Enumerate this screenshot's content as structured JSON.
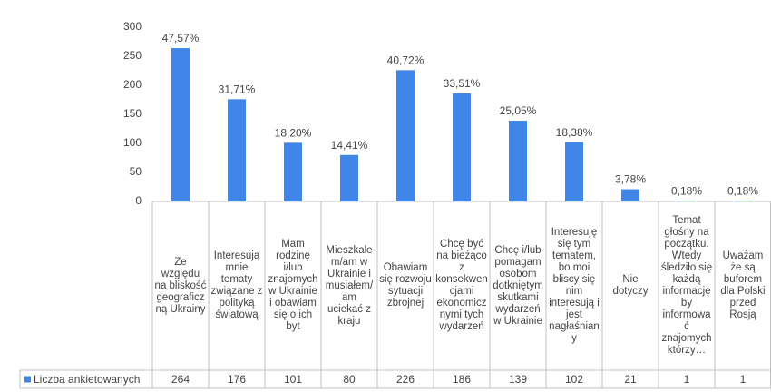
{
  "chart_data": {
    "type": "bar",
    "categories": [
      "Ze względu na bliskość geograficzną Ukrainy",
      "Interesują mnie tematy związane z polityką światową",
      "Mam rodzinę i/lub znajomych w Ukrainie i obawiam się o ich byt",
      "Mieszkałem/am w Ukrainie i musiałem/am uciekać z kraju",
      "Obawiam się rozwoju sytuacji zbrojnej",
      "Chcę być na bieżąco z konsekwencjami ekonomicznymi tych wydarzeń",
      "Chcę i/lub pomagam osobom dotkniętym skutkami wydarzeń w Ukrainie",
      "Interesuję się tym tematem, bo moi bliscy się nim interesują i jest nagłaśniany",
      "Nie dotyczy",
      "Temat głośny na początku. Wtedy śledziło się każdą informację by informować znajomych którzy…",
      "Uważam że są buforem dla Polski przed Rosją"
    ],
    "series": [
      {
        "name": "Liczba ankietowanych",
        "color": "#3f86e8",
        "values": [
          264,
          176,
          101,
          80,
          226,
          186,
          139,
          102,
          21,
          1,
          1
        ]
      }
    ],
    "percent_labels": [
      "47,57%",
      "31,71%",
      "18,20%",
      "14,41%",
      "40,72%",
      "33,51%",
      "25,05%",
      "18,38%",
      "3,78%",
      "0,18%",
      "0,18%"
    ],
    "ylim": [
      0,
      300
    ],
    "yticks": [
      0,
      50,
      100,
      150,
      200,
      250,
      300
    ],
    "legend": "bottom-left"
  }
}
